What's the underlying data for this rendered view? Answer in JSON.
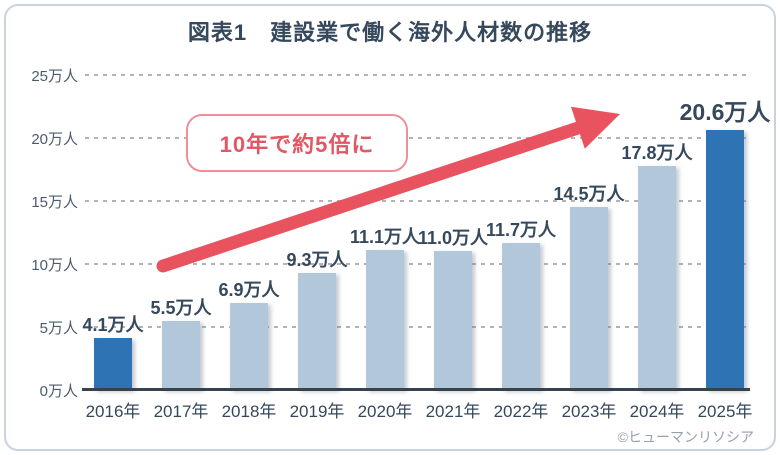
{
  "title": "図表1　建設業で働く海外人材数の推移",
  "callout": {
    "text": "10年で約5倍に"
  },
  "copyright": "©ヒューマンリソシア",
  "chart_data": {
    "type": "bar",
    "title": "図表1　建設業で働く海外人材数の推移",
    "categories": [
      "2016年",
      "2017年",
      "2018年",
      "2019年",
      "2020年",
      "2021年",
      "2022年",
      "2023年",
      "2024年",
      "2025年"
    ],
    "values": [
      4.1,
      5.5,
      6.9,
      9.3,
      11.1,
      11.0,
      11.7,
      14.5,
      17.8,
      20.6
    ],
    "value_labels": [
      "4.1万人",
      "5.5万人",
      "6.9万人",
      "9.3万人",
      "11.1万人",
      "11.0万人",
      "11.7万人",
      "14.5万人",
      "17.8万人",
      "20.6万人"
    ],
    "unit": "万人",
    "ylim": [
      0,
      25
    ],
    "ytick_values": [
      0,
      5,
      10,
      15,
      20,
      25
    ],
    "ytick_labels": [
      "0万人",
      "5万人",
      "10万人",
      "15万人",
      "20万人",
      "25万人"
    ],
    "grid": "dashed-horizontal",
    "legend": "none",
    "highlight_indices": [
      0,
      9
    ],
    "annotation": "10年で約5倍に",
    "colors": {
      "bar_default": "#b3c7db",
      "bar_highlight": "#2e74b5",
      "axis_text": "#35485c",
      "ytick_text": "#4b5b6b",
      "arrow": "#e9525f",
      "callout_text": "#e25763",
      "callout_border": "#ef9098",
      "frame_border": "#c6d4e2",
      "axis_line": "#36424e",
      "copyright": "#97a1ac"
    }
  }
}
